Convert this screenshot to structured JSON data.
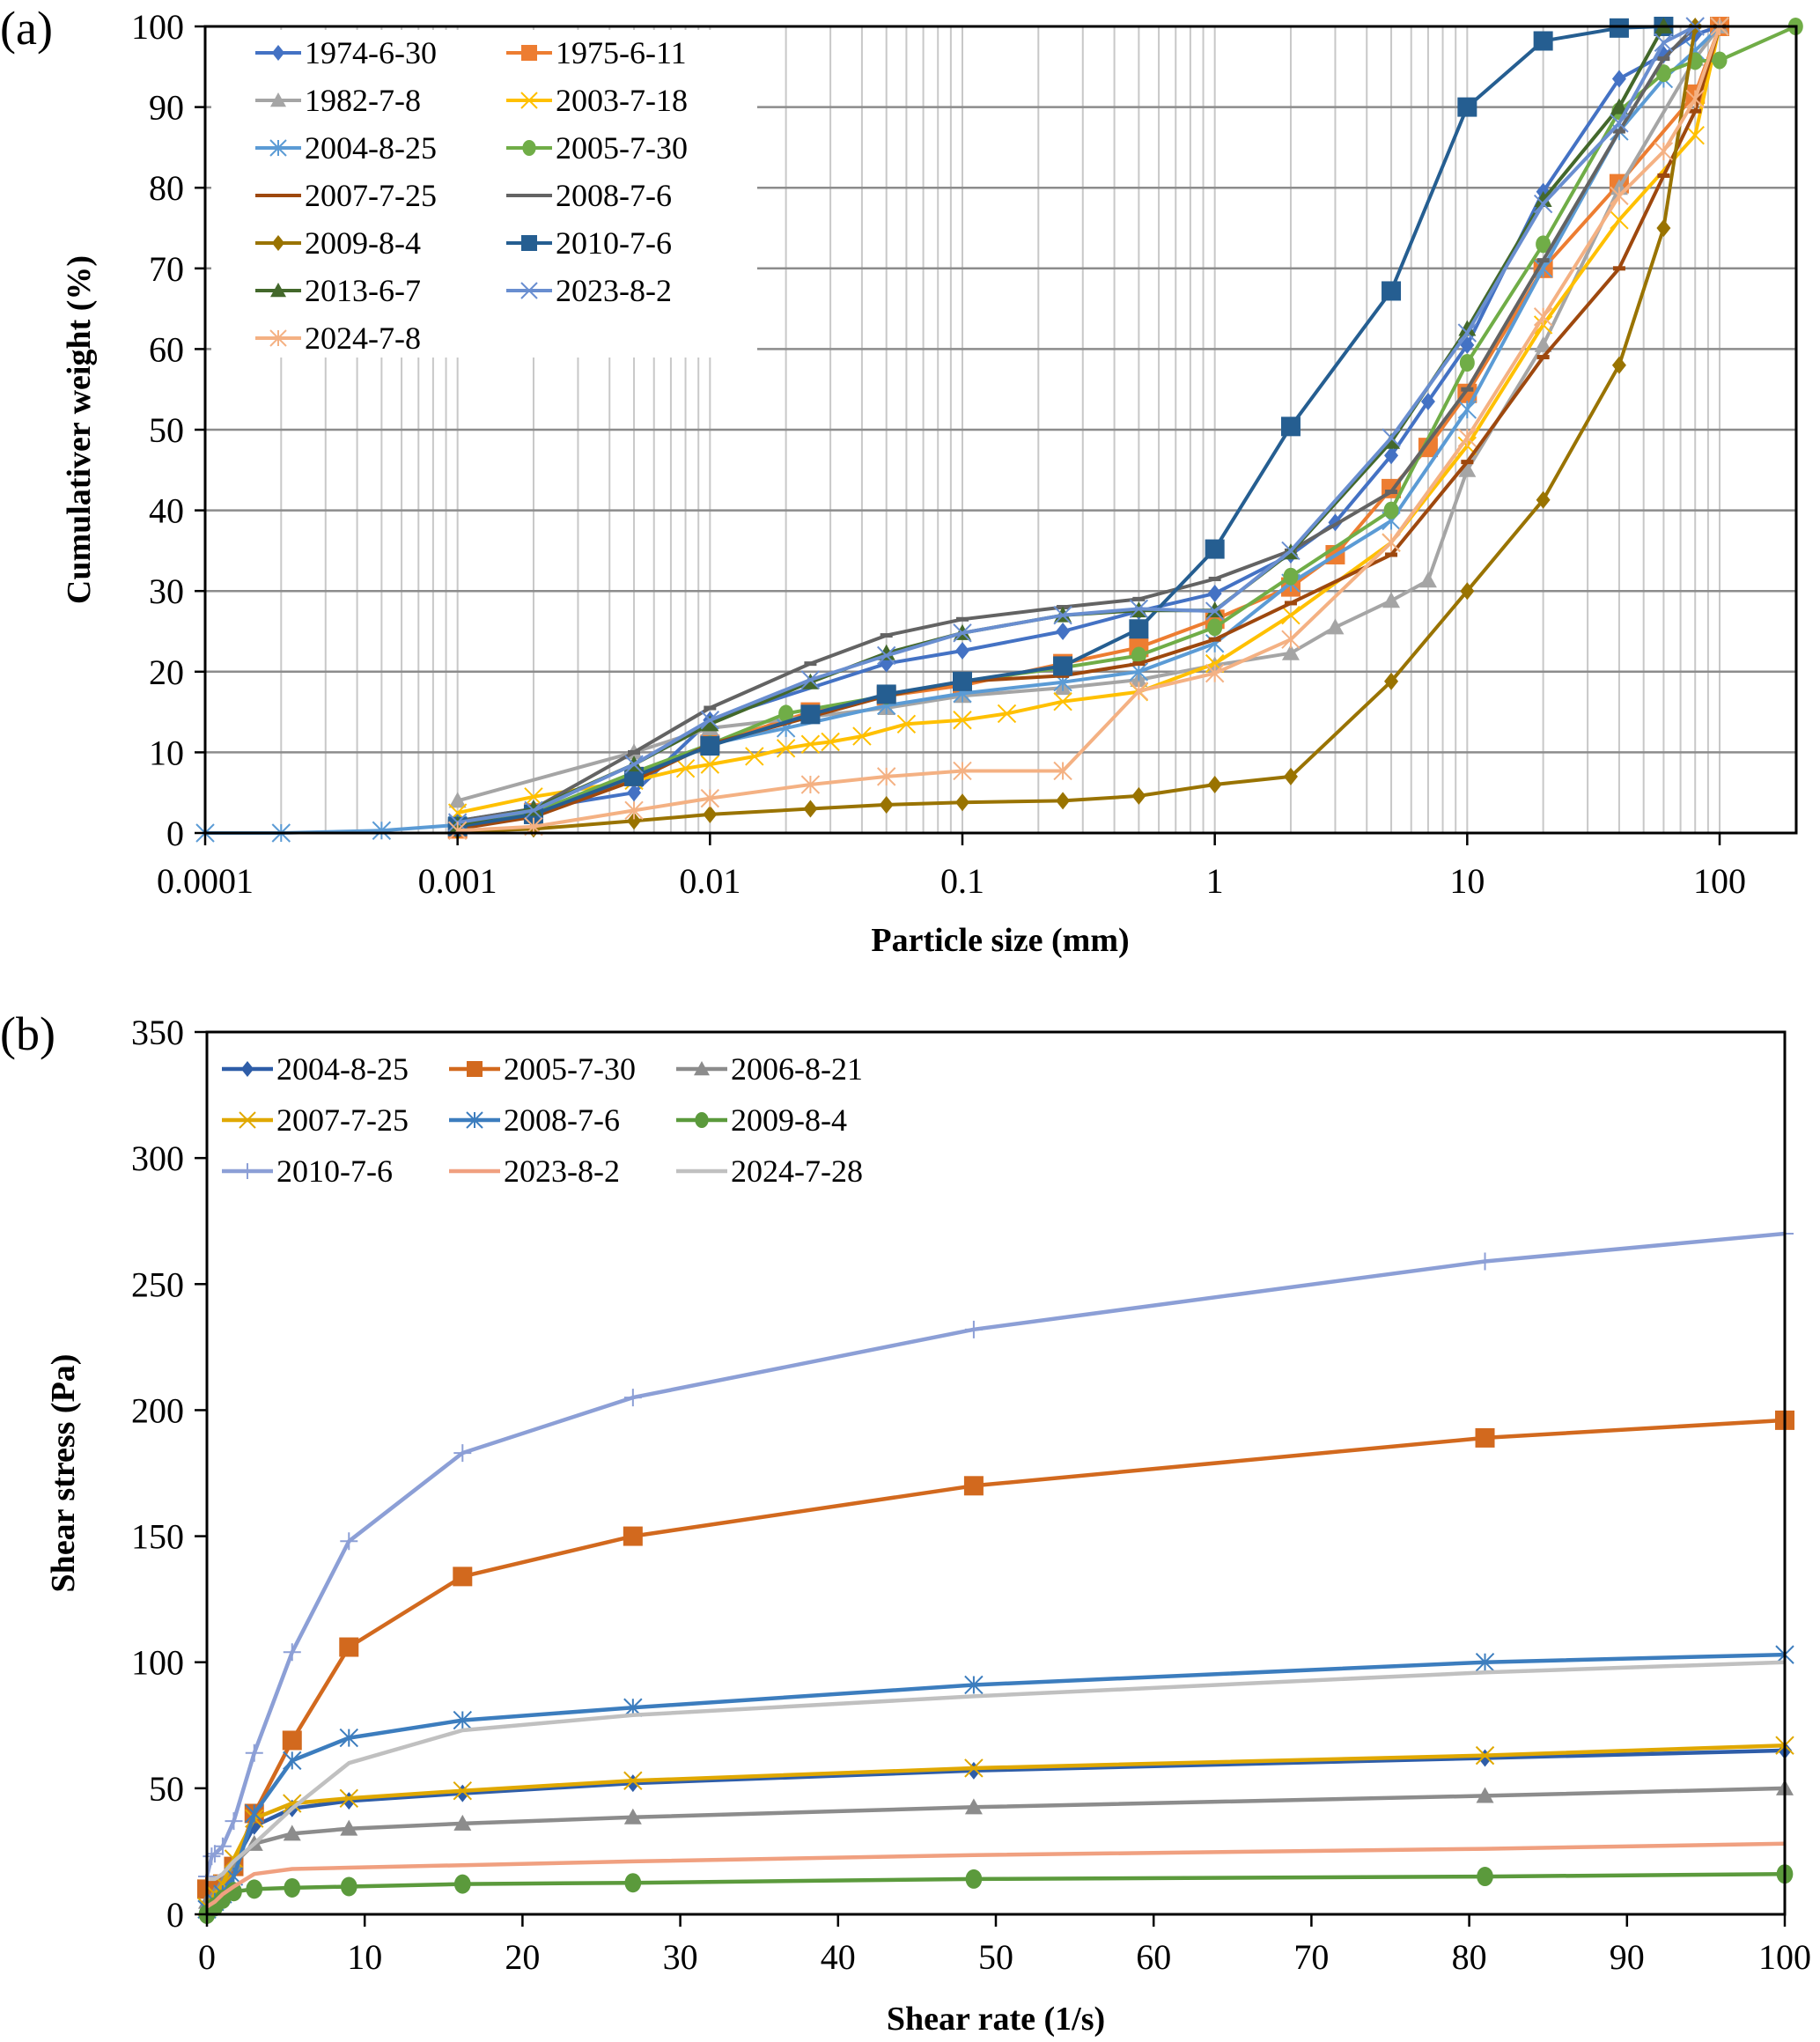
{
  "chart_data": [
    {
      "panel_label": "(a)",
      "type": "line",
      "xscale": "log",
      "title": "",
      "xlabel": "Particle size (mm)",
      "ylabel": "Cumulativer weight (%)",
      "xlim": [
        0.0001,
        200
      ],
      "ylim": [
        0,
        100
      ],
      "xticks": [
        "0.0001",
        "0.001",
        "0.01",
        "0.1",
        "1",
        "10",
        "100"
      ],
      "xtick_values": [
        0.0001,
        0.001,
        0.01,
        0.1,
        1,
        10,
        100
      ],
      "yticks": [
        "0",
        "10",
        "20",
        "30",
        "40",
        "50",
        "60",
        "70",
        "80",
        "90",
        "100"
      ],
      "ytick_values": [
        0,
        10,
        20,
        30,
        40,
        50,
        60,
        70,
        80,
        90,
        100
      ],
      "grid": true,
      "legend_position": "top-left",
      "series": [
        {
          "name": "1974-6-30",
          "color": "#4472C4",
          "marker": "diamond",
          "x": [
            0.001,
            0.002,
            0.005,
            0.01,
            0.05,
            0.1,
            0.25,
            0.5,
            1,
            2,
            3,
            5,
            7,
            10,
            20,
            40,
            60,
            80,
            100
          ],
          "y": [
            1.5,
            3,
            5,
            14,
            21,
            22.6,
            25,
            27.5,
            29.7,
            34.5,
            38.5,
            46.8,
            53.5,
            60.5,
            79.5,
            93.5,
            96.5,
            99,
            100
          ]
        },
        {
          "name": "1975-6-11",
          "color": "#ED7D31",
          "marker": "square",
          "x": [
            0.001,
            0.002,
            0.005,
            0.01,
            0.025,
            0.05,
            0.1,
            0.25,
            0.5,
            1,
            2,
            3,
            5,
            7,
            10,
            20,
            40,
            80,
            100
          ],
          "y": [
            0.5,
            2.5,
            7,
            11,
            15,
            17,
            18.3,
            21,
            23,
            26.5,
            30.5,
            34.5,
            42.7,
            47.8,
            54.5,
            70,
            80.5,
            91.6,
            100
          ]
        },
        {
          "name": "1982-7-8",
          "color": "#A5A5A5",
          "marker": "triangle",
          "x": [
            0.001,
            0.005,
            0.01,
            0.05,
            0.1,
            0.25,
            0.5,
            1,
            2,
            3,
            5,
            7,
            10,
            20,
            40,
            80,
            100
          ],
          "y": [
            4,
            10,
            13,
            15.5,
            17,
            18,
            19,
            20.8,
            22.3,
            25.5,
            28.8,
            31.3,
            45,
            60.5,
            80,
            96,
            100
          ]
        },
        {
          "name": "2003-7-18",
          "color": "#FFC000",
          "marker": "x",
          "x": [
            0.001,
            0.002,
            0.005,
            0.008,
            0.01,
            0.015,
            0.02,
            0.025,
            0.03,
            0.04,
            0.06,
            0.1,
            0.15,
            0.25,
            0.5,
            1,
            2,
            5,
            10,
            20,
            40,
            80,
            100
          ],
          "y": [
            2.5,
            4.5,
            6.5,
            8,
            8.5,
            9.5,
            10.5,
            11,
            11.3,
            12,
            13.5,
            14,
            14.8,
            16.3,
            17.5,
            21,
            27,
            36,
            48,
            63,
            76,
            86.5,
            100
          ]
        },
        {
          "name": "2004-8-25",
          "color": "#5B9BD5",
          "marker": "asterisk",
          "x": [
            0.0001,
            0.0002,
            0.0005,
            0.001,
            0.002,
            0.005,
            0.01,
            0.02,
            0.05,
            0.1,
            0.25,
            0.5,
            1,
            2,
            5,
            10,
            20,
            40,
            60,
            80,
            100
          ],
          "y": [
            0,
            0,
            0.3,
            1,
            2.5,
            7,
            11,
            13,
            15.8,
            17.3,
            18.7,
            20,
            23.5,
            31,
            38.7,
            52.5,
            70,
            87,
            93.5,
            97,
            100
          ]
        },
        {
          "name": "2005-7-30",
          "color": "#70AD47",
          "marker": "circle",
          "x": [
            0.001,
            0.002,
            0.005,
            0.01,
            0.02,
            0.05,
            0.1,
            0.25,
            0.5,
            1,
            2,
            5,
            10,
            20,
            40,
            60,
            80,
            100,
            200
          ],
          "y": [
            1,
            2.5,
            7.5,
            11,
            14.8,
            17,
            18.8,
            20.5,
            22,
            25.5,
            31.8,
            40,
            58.3,
            73,
            89.5,
            94.2,
            95.7,
            95.8,
            100
          ]
        },
        {
          "name": "2007-7-25",
          "color": "#9E480E",
          "marker": "dash",
          "x": [
            0.001,
            0.002,
            0.005,
            0.01,
            0.05,
            0.1,
            0.25,
            0.5,
            1,
            2,
            5,
            10,
            20,
            40,
            60,
            80,
            100
          ],
          "y": [
            0.5,
            2,
            6.5,
            11,
            17,
            18.8,
            19.5,
            21,
            24,
            28.5,
            34.5,
            46,
            59,
            70,
            81.5,
            89.5,
            100
          ]
        },
        {
          "name": "2008-7-6",
          "color": "#636363",
          "marker": "dash",
          "x": [
            0.001,
            0.002,
            0.005,
            0.01,
            0.025,
            0.05,
            0.1,
            0.25,
            0.5,
            1,
            2,
            5,
            10,
            20,
            40,
            60,
            80
          ],
          "y": [
            1.5,
            3,
            10,
            15.5,
            21,
            24.5,
            26.5,
            28,
            29,
            31.5,
            35,
            42.3,
            55,
            71,
            87,
            96,
            100
          ]
        },
        {
          "name": "2009-8-4",
          "color": "#997300",
          "marker": "diamond",
          "x": [
            0.001,
            0.002,
            0.005,
            0.01,
            0.025,
            0.05,
            0.1,
            0.25,
            0.5,
            1,
            2,
            5,
            10,
            20,
            40,
            60,
            80
          ],
          "y": [
            0.2,
            0.5,
            1.5,
            2.3,
            3,
            3.5,
            3.8,
            4,
            4.6,
            6,
            7,
            18.8,
            30,
            41.3,
            58,
            75,
            100
          ]
        },
        {
          "name": "2010-7-6",
          "color": "#255E91",
          "marker": "square",
          "x": [
            0.001,
            0.002,
            0.005,
            0.01,
            0.025,
            0.05,
            0.1,
            0.25,
            0.5,
            1,
            2,
            5,
            10,
            20,
            40,
            60
          ],
          "y": [
            0.8,
            2.3,
            7,
            10.8,
            14.7,
            17.2,
            18.8,
            20.7,
            25.3,
            35.2,
            50.4,
            67.2,
            90,
            98.2,
            99.8,
            100
          ]
        },
        {
          "name": "2013-6-7",
          "color": "#43682B",
          "marker": "triangle",
          "x": [
            0.001,
            0.002,
            0.005,
            0.01,
            0.025,
            0.05,
            0.1,
            0.25,
            0.5,
            1,
            2,
            5,
            10,
            20,
            40,
            60
          ],
          "y": [
            1,
            3,
            8.5,
            13.5,
            18.7,
            22.3,
            24.8,
            27,
            27.6,
            27.6,
            34.8,
            48.5,
            62.5,
            78.5,
            90,
            100
          ]
        },
        {
          "name": "2023-8-2",
          "color": "#698ED0",
          "marker": "x",
          "x": [
            0.001,
            0.002,
            0.005,
            0.01,
            0.025,
            0.05,
            0.1,
            0.25,
            0.5,
            1,
            2,
            5,
            10,
            20,
            40,
            60,
            80
          ],
          "y": [
            1.3,
            2.8,
            8.5,
            14,
            19,
            22,
            24.8,
            27,
            27.8,
            27.5,
            35,
            49,
            62,
            78,
            88,
            98,
            100
          ]
        },
        {
          "name": "2024-7-8",
          "color": "#F4B183",
          "marker": "asterisk",
          "x": [
            0.001,
            0.002,
            0.005,
            0.01,
            0.025,
            0.05,
            0.1,
            0.25,
            0.5,
            1,
            2,
            5,
            10,
            20,
            40,
            60,
            80,
            100
          ],
          "y": [
            0.3,
            0.8,
            2.8,
            4.3,
            6,
            7,
            7.7,
            7.7,
            17.6,
            19.8,
            24,
            36,
            49,
            64,
            79,
            84.5,
            91,
            100
          ]
        }
      ]
    },
    {
      "panel_label": "(b)",
      "type": "line",
      "title": "",
      "xlabel": "Shear rate (1/s)",
      "ylabel": "Shear stress  (Pa)",
      "xlim": [
        0,
        100
      ],
      "ylim": [
        0,
        350
      ],
      "xticks": [
        "0",
        "10",
        "20",
        "30",
        "40",
        "50",
        "60",
        "70",
        "80",
        "90",
        "100"
      ],
      "xtick_values": [
        0,
        10,
        20,
        30,
        40,
        50,
        60,
        70,
        80,
        90,
        100
      ],
      "yticks": [
        "0",
        "50",
        "100",
        "150",
        "200",
        "250",
        "300",
        "350"
      ],
      "ytick_values": [
        0,
        50,
        100,
        150,
        200,
        250,
        300,
        350
      ],
      "grid": false,
      "legend_position": "top-left",
      "series": [
        {
          "name": "2004-8-25",
          "color": "#2E5DA8",
          "marker": "diamond",
          "x": [
            0,
            0.5,
            1,
            1.7,
            3,
            5.4,
            9,
            16.2,
            27,
            48.6,
            81,
            100
          ],
          "y": [
            2,
            6,
            10,
            20,
            35,
            42,
            45,
            48,
            52,
            57,
            62,
            65
          ]
        },
        {
          "name": "2005-7-30",
          "color": "#D2691E",
          "marker": "square",
          "x": [
            0,
            0.5,
            1,
            1.7,
            3,
            5.4,
            9,
            16.2,
            27,
            48.6,
            81,
            100
          ],
          "y": [
            10,
            11,
            12,
            19,
            40,
            69,
            106,
            134,
            150,
            170,
            189,
            196
          ]
        },
        {
          "name": "2006-8-21",
          "color": "#8C8C8C",
          "marker": "triangle",
          "x": [
            0,
            0.5,
            1,
            1.7,
            3,
            5.4,
            9,
            16.2,
            27,
            48.6,
            81,
            100
          ],
          "y": [
            5,
            8,
            12,
            20,
            28,
            32,
            34,
            36,
            38.5,
            42.5,
            47,
            50
          ]
        },
        {
          "name": "2007-7-25",
          "color": "#E0A800",
          "marker": "x",
          "x": [
            0,
            0.5,
            1,
            1.7,
            3,
            5.4,
            9,
            16.2,
            27,
            48.6,
            81,
            100
          ],
          "y": [
            3,
            8,
            12,
            22,
            38,
            44,
            46,
            49,
            53,
            58,
            63,
            67
          ]
        },
        {
          "name": "2008-7-6",
          "color": "#3C7DBE",
          "marker": "asterisk",
          "x": [
            0,
            0.5,
            1,
            1.7,
            3,
            5.4,
            9,
            16.2,
            27,
            48.6,
            81,
            100
          ],
          "y": [
            2,
            5,
            8,
            15,
            40,
            61,
            70,
            77,
            82,
            91,
            100,
            103
          ]
        },
        {
          "name": "2009-8-4",
          "color": "#5B9A3C",
          "marker": "circle",
          "x": [
            0,
            0.5,
            1,
            1.7,
            3,
            5.4,
            9,
            16.2,
            27,
            48.6,
            81,
            100
          ],
          "y": [
            0,
            3,
            6,
            9,
            10,
            10.5,
            11,
            12,
            12.5,
            14,
            15,
            16
          ]
        },
        {
          "name": "2010-7-6",
          "color": "#8C9FD6",
          "marker": "plus",
          "x": [
            0,
            0.3,
            0.5,
            1,
            1.7,
            3,
            5.4,
            9,
            16.2,
            27,
            48.6,
            81,
            100
          ],
          "y": [
            15,
            23,
            24,
            27,
            37,
            64,
            104,
            148,
            183,
            205,
            232,
            259,
            270
          ]
        },
        {
          "name": "2023-8-2",
          "color": "#F0A080",
          "marker": "dash",
          "x": [
            0,
            0.5,
            1,
            1.7,
            3,
            5.4,
            9,
            16.2,
            27,
            48.6,
            81,
            100
          ],
          "y": [
            3,
            5,
            8,
            11,
            16,
            18,
            18.5,
            19.5,
            21,
            23.5,
            26,
            28
          ]
        },
        {
          "name": "2024-7-28",
          "color": "#C0C0C0",
          "marker": "dash",
          "x": [
            0,
            0.5,
            1,
            1.7,
            3,
            5.4,
            9,
            16.2,
            27,
            48.6,
            81,
            100
          ],
          "y": [
            14,
            14,
            16,
            21,
            28,
            42,
            60,
            73,
            79,
            86.5,
            96,
            100
          ]
        }
      ]
    }
  ]
}
